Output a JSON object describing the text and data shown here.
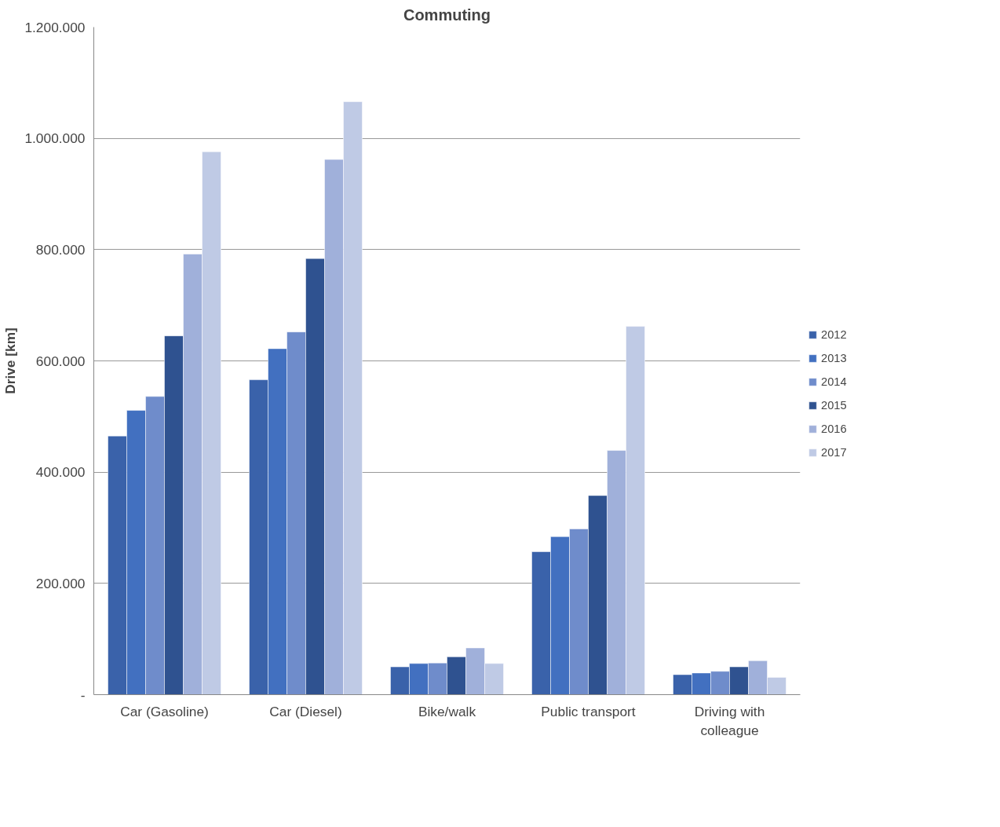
{
  "chart_data": {
    "type": "bar",
    "title": "Commuting",
    "ylabel": "Drive [km]",
    "categories": [
      "Car (Gasoline)",
      "Car (Diesel)",
      "Bike/walk",
      "Public transport",
      "Driving with colleague"
    ],
    "series": [
      {
        "name": "2012",
        "color": "#3a62aa",
        "values": [
          465000,
          566000,
          50000,
          257000,
          36000
        ]
      },
      {
        "name": "2013",
        "color": "#4270c0",
        "values": [
          511000,
          622000,
          56000,
          284000,
          39000
        ]
      },
      {
        "name": "2014",
        "color": "#6f8ccb",
        "values": [
          536000,
          652000,
          57000,
          298000,
          42000
        ]
      },
      {
        "name": "2015",
        "color": "#2f5290",
        "values": [
          645000,
          784000,
          68000,
          358000,
          50000
        ]
      },
      {
        "name": "2016",
        "color": "#a0b0da",
        "values": [
          792000,
          962000,
          84000,
          439000,
          61000
        ]
      },
      {
        "name": "2017",
        "color": "#bfcae5",
        "values": [
          976000,
          1066000,
          56000,
          662000,
          31000
        ]
      }
    ],
    "ylim": [
      0,
      1200000
    ],
    "yticks": [
      {
        "value": 0,
        "label": "-"
      },
      {
        "value": 200000,
        "label": "200.000"
      },
      {
        "value": 400000,
        "label": "400.000"
      },
      {
        "value": 600000,
        "label": "600.000"
      },
      {
        "value": 800000,
        "label": "800.000"
      },
      {
        "value": 1000000,
        "label": "1.000.000"
      },
      {
        "value": 1200000,
        "label": "1.200.000"
      }
    ],
    "grid": "y",
    "legend": "right"
  }
}
